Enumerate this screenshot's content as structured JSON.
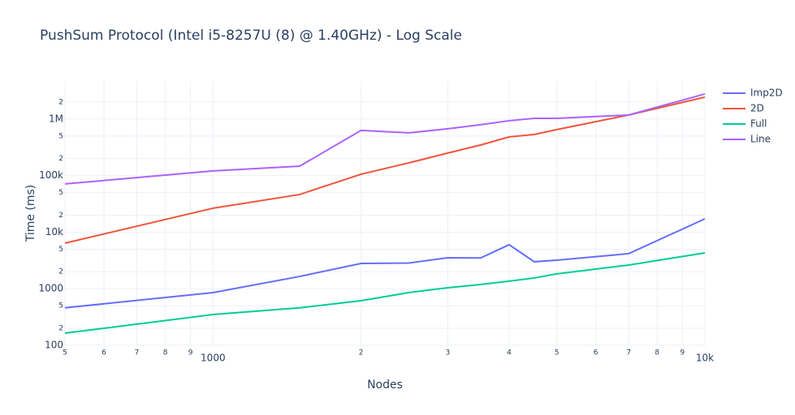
{
  "chart_data": {
    "type": "line",
    "title": "PushSum Protocol (Intel i5-8257U (8) @ 1.40GHz) - Log Scale",
    "x_label": "Nodes",
    "y_label": "Time (ms)",
    "log_x": true,
    "log_y": true,
    "grid": true,
    "legend": "top-right",
    "x": [
      500,
      1000,
      1500,
      2000,
      2500,
      3000,
      3500,
      4000,
      4500,
      5000,
      7000,
      10000
    ],
    "series": [
      {
        "name": "Imp2D",
        "color": "#636efa",
        "values": [
          460,
          855,
          1650,
          2800,
          2850,
          3530,
          3500,
          6000,
          3000,
          3200,
          4170,
          17200
        ]
      },
      {
        "name": "2D",
        "color": "#EF553B",
        "values": [
          6400,
          26500,
          46400,
          106000,
          168000,
          250000,
          348000,
          484000,
          535000,
          651000,
          1180000,
          2440000
        ]
      },
      {
        "name": "Full",
        "color": "#00cc96",
        "values": [
          164,
          350,
          460,
          615,
          855,
          1040,
          1190,
          1360,
          1550,
          1830,
          2620,
          4310
        ]
      },
      {
        "name": "Line",
        "color": "#ab63fa",
        "values": [
          71300,
          121000,
          147000,
          630000,
          570000,
          673000,
          794000,
          935000,
          1030000,
          1030000,
          1180000,
          2780000
        ]
      }
    ],
    "xlim": [
      500,
      10000
    ],
    "ylim": [
      100,
      4700000
    ],
    "xticks": [
      {
        "value": 500,
        "label": "5"
      },
      {
        "value": 600,
        "label": "6"
      },
      {
        "value": 700,
        "label": "7"
      },
      {
        "value": 800,
        "label": "8"
      },
      {
        "value": 900,
        "label": "9"
      },
      1000,
      {
        "value": 2000,
        "label": "2"
      },
      {
        "value": 3000,
        "label": "3"
      },
      {
        "value": 4000,
        "label": "4"
      },
      {
        "value": 5000,
        "label": "5"
      },
      {
        "value": 6000,
        "label": "6"
      },
      {
        "value": 7000,
        "label": "7"
      },
      {
        "value": 8000,
        "label": "8"
      },
      {
        "value": 9000,
        "label": "9"
      },
      {
        "value": 10000,
        "label": "10k"
      }
    ],
    "yticks": [
      100,
      {
        "value": 200,
        "label": "2"
      },
      {
        "value": 500,
        "label": "5"
      },
      1000,
      {
        "value": 2000,
        "label": "2"
      },
      {
        "value": 5000,
        "label": "5"
      },
      {
        "value": 10000,
        "label": "10k"
      },
      {
        "value": 20000,
        "label": "2"
      },
      {
        "value": 50000,
        "label": "5"
      },
      {
        "value": 100000,
        "label": "100k"
      },
      {
        "value": 200000,
        "label": "2"
      },
      {
        "value": 500000,
        "label": "5"
      },
      {
        "value": 1000000,
        "label": "1M"
      },
      {
        "value": 2000000,
        "label": "2"
      }
    ]
  }
}
